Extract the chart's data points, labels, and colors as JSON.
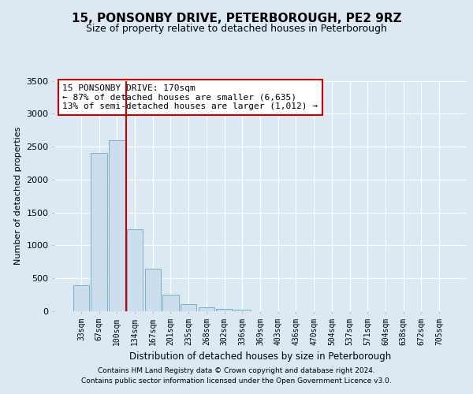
{
  "title": "15, PONSONBY DRIVE, PETERBOROUGH, PE2 9RZ",
  "subtitle": "Size of property relative to detached houses in Peterborough",
  "xlabel": "Distribution of detached houses by size in Peterborough",
  "ylabel": "Number of detached properties",
  "footer_line1": "Contains HM Land Registry data © Crown copyright and database right 2024.",
  "footer_line2": "Contains public sector information licensed under the Open Government Licence v3.0.",
  "categories": [
    "33sqm",
    "67sqm",
    "100sqm",
    "134sqm",
    "167sqm",
    "201sqm",
    "235sqm",
    "268sqm",
    "302sqm",
    "336sqm",
    "369sqm",
    "403sqm",
    "436sqm",
    "470sqm",
    "504sqm",
    "537sqm",
    "571sqm",
    "604sqm",
    "638sqm",
    "672sqm",
    "705sqm"
  ],
  "values": [
    390,
    2400,
    2600,
    1250,
    650,
    250,
    110,
    60,
    30,
    20,
    0,
    0,
    0,
    0,
    0,
    0,
    0,
    0,
    0,
    0,
    0
  ],
  "bar_color": "#ccdded",
  "bar_edge_color": "#7aafc8",
  "vline_color": "#cc0000",
  "vline_index": 3,
  "annotation_text": "15 PONSONBY DRIVE: 170sqm\n← 87% of detached houses are smaller (6,635)\n13% of semi-detached houses are larger (1,012) →",
  "annotation_box_facecolor": "white",
  "annotation_box_edgecolor": "#cc0000",
  "ylim": [
    0,
    3500
  ],
  "yticks": [
    0,
    500,
    1000,
    1500,
    2000,
    2500,
    3000,
    3500
  ],
  "background_color": "#dce8f2",
  "title_fontsize": 11,
  "subtitle_fontsize": 9,
  "footer_fontsize": 6.5,
  "grid_color": "white",
  "grid_linewidth": 0.9
}
